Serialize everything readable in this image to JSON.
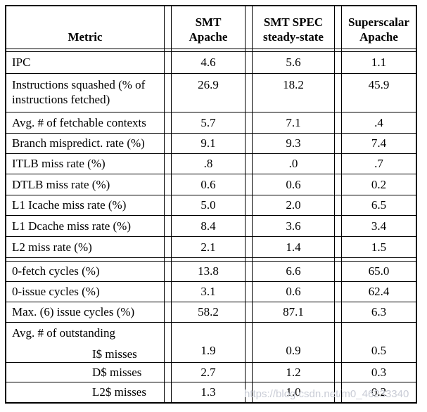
{
  "page": {
    "background": "#ffffff",
    "border_color": "#000000",
    "watermark": "https://blog.csdn.net/m0_46233340"
  },
  "table": {
    "columns": [
      {
        "label": "Metric"
      },
      {
        "label": "SMT\nApache"
      },
      {
        "label": "SMT SPEC\nsteady-state"
      },
      {
        "label": "Superscalar\nApache"
      }
    ],
    "rows": [
      {
        "metric": "IPC",
        "values": [
          "4.6",
          "5.6",
          "1.1"
        ]
      },
      {
        "metric": "Instructions squashed (% of instructions fetched)",
        "values": [
          "26.9",
          "18.2",
          "45.9"
        ],
        "valign": "top"
      },
      {
        "metric": "Avg. # of fetchable contexts",
        "values": [
          "5.7",
          "7.1",
          ".4"
        ]
      },
      {
        "metric": "Branch mispredict. rate (%)",
        "values": [
          "9.1",
          "9.3",
          "7.4"
        ]
      },
      {
        "metric": "ITLB miss rate (%)",
        "values": [
          ".8",
          ".0",
          ".7"
        ]
      },
      {
        "metric": "DTLB miss rate (%)",
        "values": [
          "0.6",
          "0.6",
          "0.2"
        ]
      },
      {
        "metric": "L1 Icache miss rate (%)",
        "values": [
          "5.0",
          "2.0",
          "6.5"
        ]
      },
      {
        "metric": "L1 Dcache miss rate (%)",
        "values": [
          "8.4",
          "3.6",
          "3.4"
        ]
      },
      {
        "metric": "L2 miss rate (%)",
        "values": [
          "2.1",
          "1.4",
          "1.5"
        ],
        "rule_after": true
      },
      {
        "metric": "0-fetch cycles (%)",
        "values": [
          "13.8",
          "6.6",
          "65.0"
        ]
      },
      {
        "metric": "0-issue cycles (%)",
        "values": [
          "3.1",
          "0.6",
          "62.4"
        ]
      },
      {
        "metric": "Max. (6) issue cycles (%)",
        "values": [
          "58.2",
          "87.1",
          "6.3"
        ]
      },
      {
        "metric": "Avg. # of outstanding",
        "submetric": "I$ misses",
        "values": [
          "1.9",
          "0.9",
          "0.5"
        ],
        "valign": "bottom"
      },
      {
        "metric": "D$ misses",
        "values": [
          "2.7",
          "1.2",
          "0.3"
        ],
        "indent": true
      },
      {
        "metric": "L2$ misses",
        "values": [
          "1.3",
          "1.0",
          "0.2"
        ],
        "indent": true
      }
    ]
  }
}
